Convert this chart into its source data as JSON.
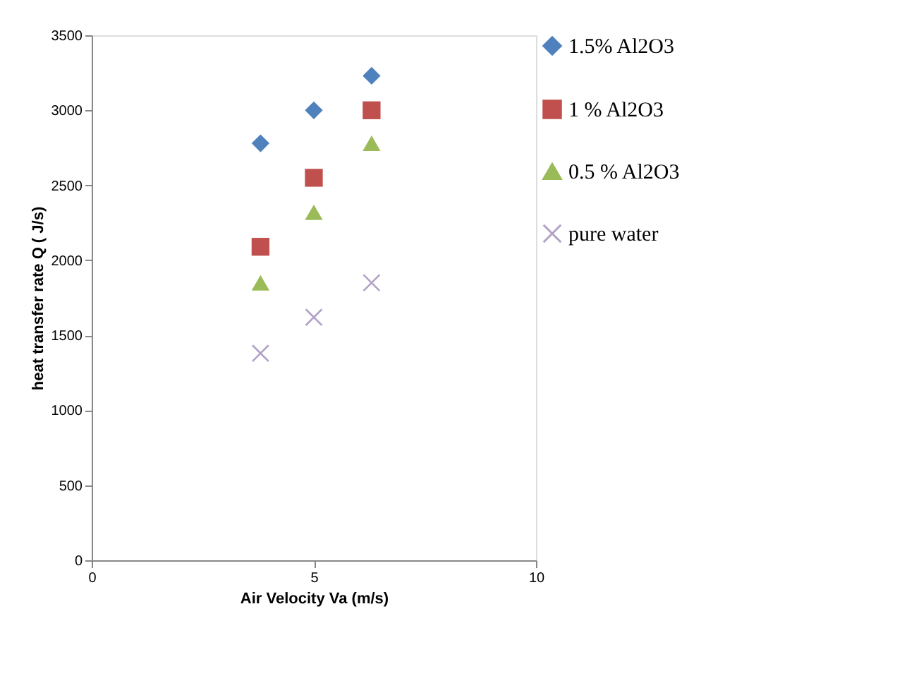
{
  "chart_data": {
    "type": "scatter",
    "xlabel": "Air Velocity  Va (m/s)",
    "ylabel": "heat transfer rate  Q ( J/s)",
    "xlim": [
      0,
      10
    ],
    "xticks": [
      0,
      5,
      10
    ],
    "ylim": [
      0,
      3500
    ],
    "yticks": [
      0,
      500,
      1000,
      1500,
      2000,
      2500,
      3000,
      3500
    ],
    "grid": false,
    "legend": "right",
    "x": [
      3.8,
      5,
      6.3
    ],
    "series": [
      {
        "name": "1.5% Al2O3",
        "color": "#4f81bd",
        "marker": "diamond",
        "values": [
          2780,
          3000,
          3230
        ]
      },
      {
        "name": "1 % Al2O3",
        "color": "#c0504d",
        "marker": "square",
        "values": [
          2090,
          2550,
          3000
        ]
      },
      {
        "name": "0.5 % Al2O3",
        "color": "#9bbb59",
        "marker": "triangle",
        "values": [
          1850,
          2320,
          2780
        ]
      },
      {
        "name": "pure water",
        "color": "#b3a2c7",
        "marker": "cross",
        "values": [
          1380,
          1620,
          1850
        ]
      }
    ]
  }
}
